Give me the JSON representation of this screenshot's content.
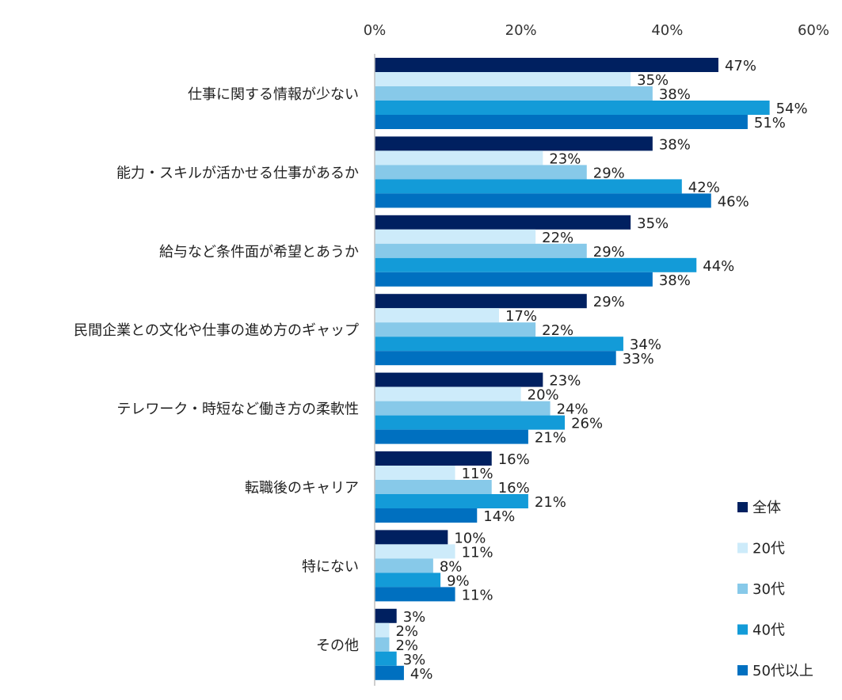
{
  "chart_data": {
    "type": "bar",
    "orientation": "horizontal",
    "categories": [
      "仕事に関する情報が少ない",
      "能力・スキルが活かせる仕事があるか",
      "給与など条件面が希望とあうか",
      "民間企業との文化や仕事の進め方のギャップ",
      "テレワーク・時短など働き方の柔軟性",
      "転職後のキャリア",
      "特にない",
      "その他"
    ],
    "series": [
      {
        "name": "全体",
        "color": "#002060",
        "values": [
          47,
          38,
          35,
          29,
          23,
          16,
          10,
          3
        ],
        "labels": [
          "47%",
          "38%",
          "35%",
          "29%",
          "23%",
          "16%",
          "10%",
          "3%"
        ]
      },
      {
        "name": "20代",
        "color": "#CDEBFA",
        "values": [
          35,
          23,
          22,
          17,
          20,
          11,
          11,
          2
        ],
        "labels": [
          "35%",
          "23%",
          "22%",
          "17%",
          "20%",
          "11%",
          "11%",
          "2%"
        ]
      },
      {
        "name": "30代",
        "color": "#87C9E9",
        "values": [
          38,
          29,
          29,
          22,
          24,
          16,
          8,
          2
        ],
        "labels": [
          "38%",
          "29%",
          "29%",
          "22%",
          "24%",
          "16%",
          "8%",
          "2%"
        ]
      },
      {
        "name": "40代",
        "color": "#139BD8",
        "values": [
          54,
          42,
          44,
          34,
          26,
          21,
          9,
          3
        ],
        "labels": [
          "54%",
          "42%",
          "44%",
          "34%",
          "26%",
          "21%",
          "9%",
          "3%"
        ]
      },
      {
        "name": "50代以上",
        "color": "#0070C0",
        "values": [
          51,
          46,
          38,
          33,
          21,
          14,
          11,
          4
        ],
        "labels": [
          "51%",
          "46%",
          "38%",
          "33%",
          "21%",
          "14%",
          "11%",
          "4%"
        ]
      }
    ],
    "xlim": [
      0,
      60
    ],
    "ticks": [
      0,
      20,
      40,
      60
    ],
    "tick_labels": [
      "0%",
      "20%",
      "40%",
      "60%"
    ],
    "axis_position": "top",
    "grid": false,
    "legend_position": "bottom-right",
    "axis_color": "#BFBFBF"
  }
}
